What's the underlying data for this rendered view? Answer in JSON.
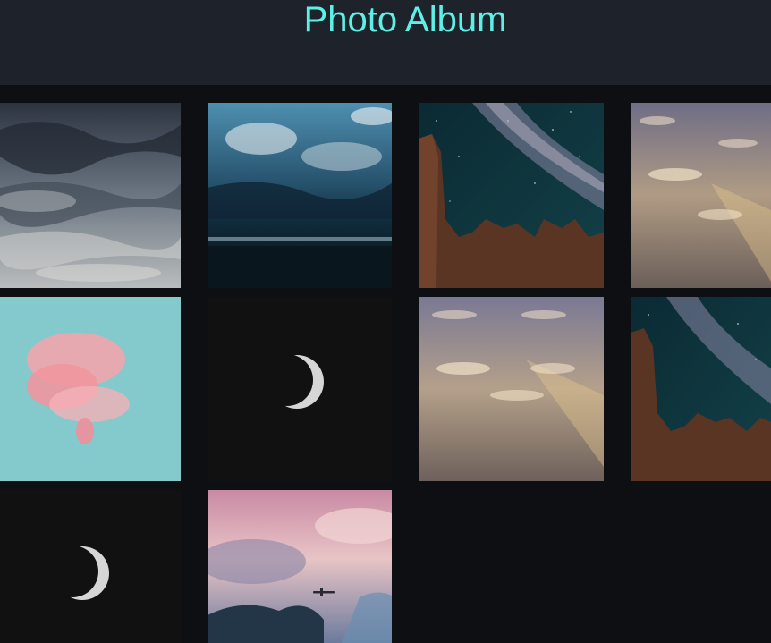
{
  "header": {
    "title": "Photo Album"
  },
  "colors": {
    "header_bg": "#1e222b",
    "page_bg": "#0e0f13",
    "title": "#5ef0e6"
  },
  "photos": [
    {
      "subject": "stormy-clouds"
    },
    {
      "subject": "ocean-storm"
    },
    {
      "subject": "milky-way-rock"
    },
    {
      "subject": "golden-clouds"
    },
    {
      "subject": "pink-cloud"
    },
    {
      "subject": "crescent-moon"
    },
    {
      "subject": "golden-clouds"
    },
    {
      "subject": "milky-way-rock"
    },
    {
      "subject": "crescent-moon"
    },
    {
      "subject": "airplane-sunset-sky"
    }
  ]
}
